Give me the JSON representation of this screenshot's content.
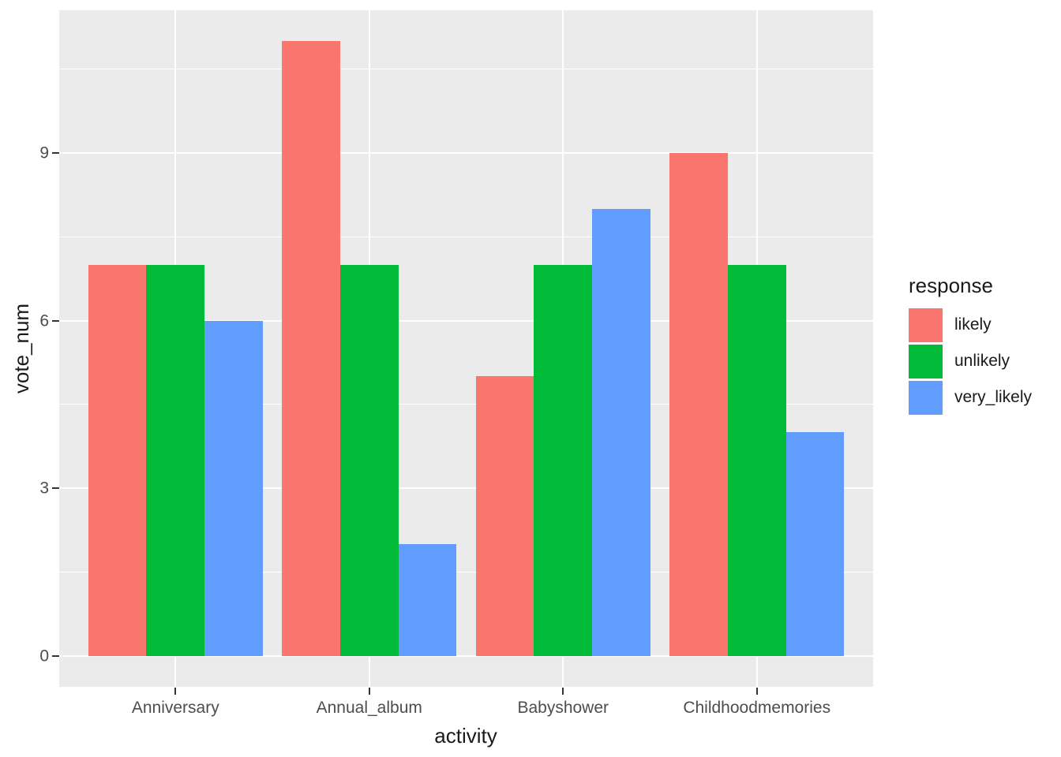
{
  "chart_data": {
    "type": "bar",
    "title": "",
    "xlabel": "activity",
    "ylabel": "vote_num",
    "categories": [
      "Anniversary",
      "Annual_album",
      "Babyshower",
      "Childhoodmemories"
    ],
    "series": [
      {
        "name": "likely",
        "color": "#F8766D",
        "values": [
          7,
          11,
          5,
          9
        ]
      },
      {
        "name": "unlikely",
        "color": "#00BA38",
        "values": [
          7,
          7,
          7,
          7
        ]
      },
      {
        "name": "very_likely",
        "color": "#619CFF",
        "values": [
          6,
          2,
          8,
          4
        ]
      }
    ],
    "y_ticks": [
      0,
      3,
      6,
      9
    ],
    "y_minor_ticks": [
      1.5,
      4.5,
      7.5,
      10.5
    ],
    "ylim": [
      -0.55,
      11.55
    ],
    "bar_group_width": 0.9,
    "bar_width": 0.3,
    "legend": {
      "title": "response",
      "position": "right"
    },
    "style": {
      "panel_bg": "#EBEBEB",
      "grid_color": "#FFFFFF",
      "tick_label_color": "#4D4D4D",
      "axis_title_color": "#1A1A1A",
      "tick_mark_color": "#333333",
      "figure_bg": "#FFFFFF"
    }
  }
}
